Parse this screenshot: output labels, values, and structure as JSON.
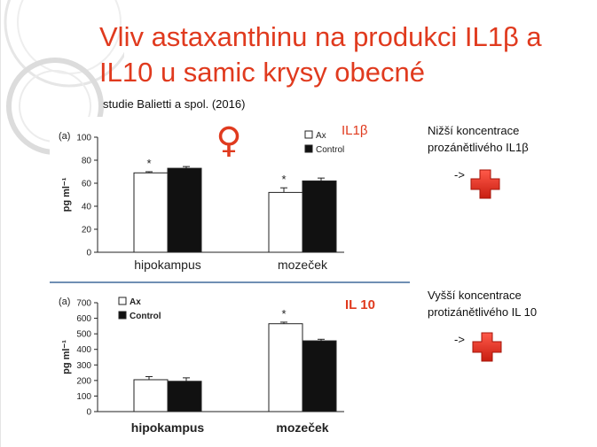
{
  "slide": {
    "title": "Vliv astaxanthinu na produkci IL1β a IL10 u samic krysy obecné",
    "subtitle": "studie Balietti a spol. (2016)",
    "female_symbol": "♀",
    "notes": [
      {
        "line1": "Nižší koncentrace",
        "line2": "prozánětlivého IL1β",
        "arrow": "->"
      },
      {
        "line1": "Vyšší koncentrace",
        "line2": "protizánětlivého IL 10",
        "arrow": "->"
      }
    ],
    "accent_color": "#e03a1e",
    "cross_icon": "red-cross-icon"
  },
  "chart_data": [
    {
      "type": "bar",
      "panel_label": "(a)",
      "marker": "IL1β",
      "ylabel": "pg ml⁻¹",
      "ylim": [
        0,
        100
      ],
      "yticks": [
        "0",
        "20",
        "40",
        "60",
        "80",
        "100"
      ],
      "categories": [
        "hipokampus",
        "mozeček"
      ],
      "series": [
        {
          "name": "Ax",
          "color": "#ffffff",
          "values": [
            69,
            52
          ],
          "errors": [
            1,
            4
          ]
        },
        {
          "name": "Control",
          "color": "#111111",
          "values": [
            73,
            62
          ],
          "errors": [
            1.5,
            2.5
          ]
        }
      ],
      "significance": [
        "*",
        "*"
      ],
      "legend": "top-right"
    },
    {
      "type": "bar",
      "panel_label": "(a)",
      "marker": "IL 10",
      "ylabel": "pg ml⁻¹",
      "ylim": [
        0,
        700
      ],
      "yticks": [
        "0",
        "100",
        "200",
        "300",
        "400",
        "500",
        "600",
        "700"
      ],
      "categories": [
        "hipokampus",
        "mozeček"
      ],
      "series": [
        {
          "name": "Ax",
          "color": "#ffffff",
          "values": [
            205,
            565
          ],
          "errors": [
            20,
            10
          ]
        },
        {
          "name": "Control",
          "color": "#111111",
          "values": [
            195,
            455
          ],
          "errors": [
            22,
            10
          ]
        }
      ],
      "significance": [
        "",
        "*"
      ],
      "legend": "top-left"
    }
  ]
}
